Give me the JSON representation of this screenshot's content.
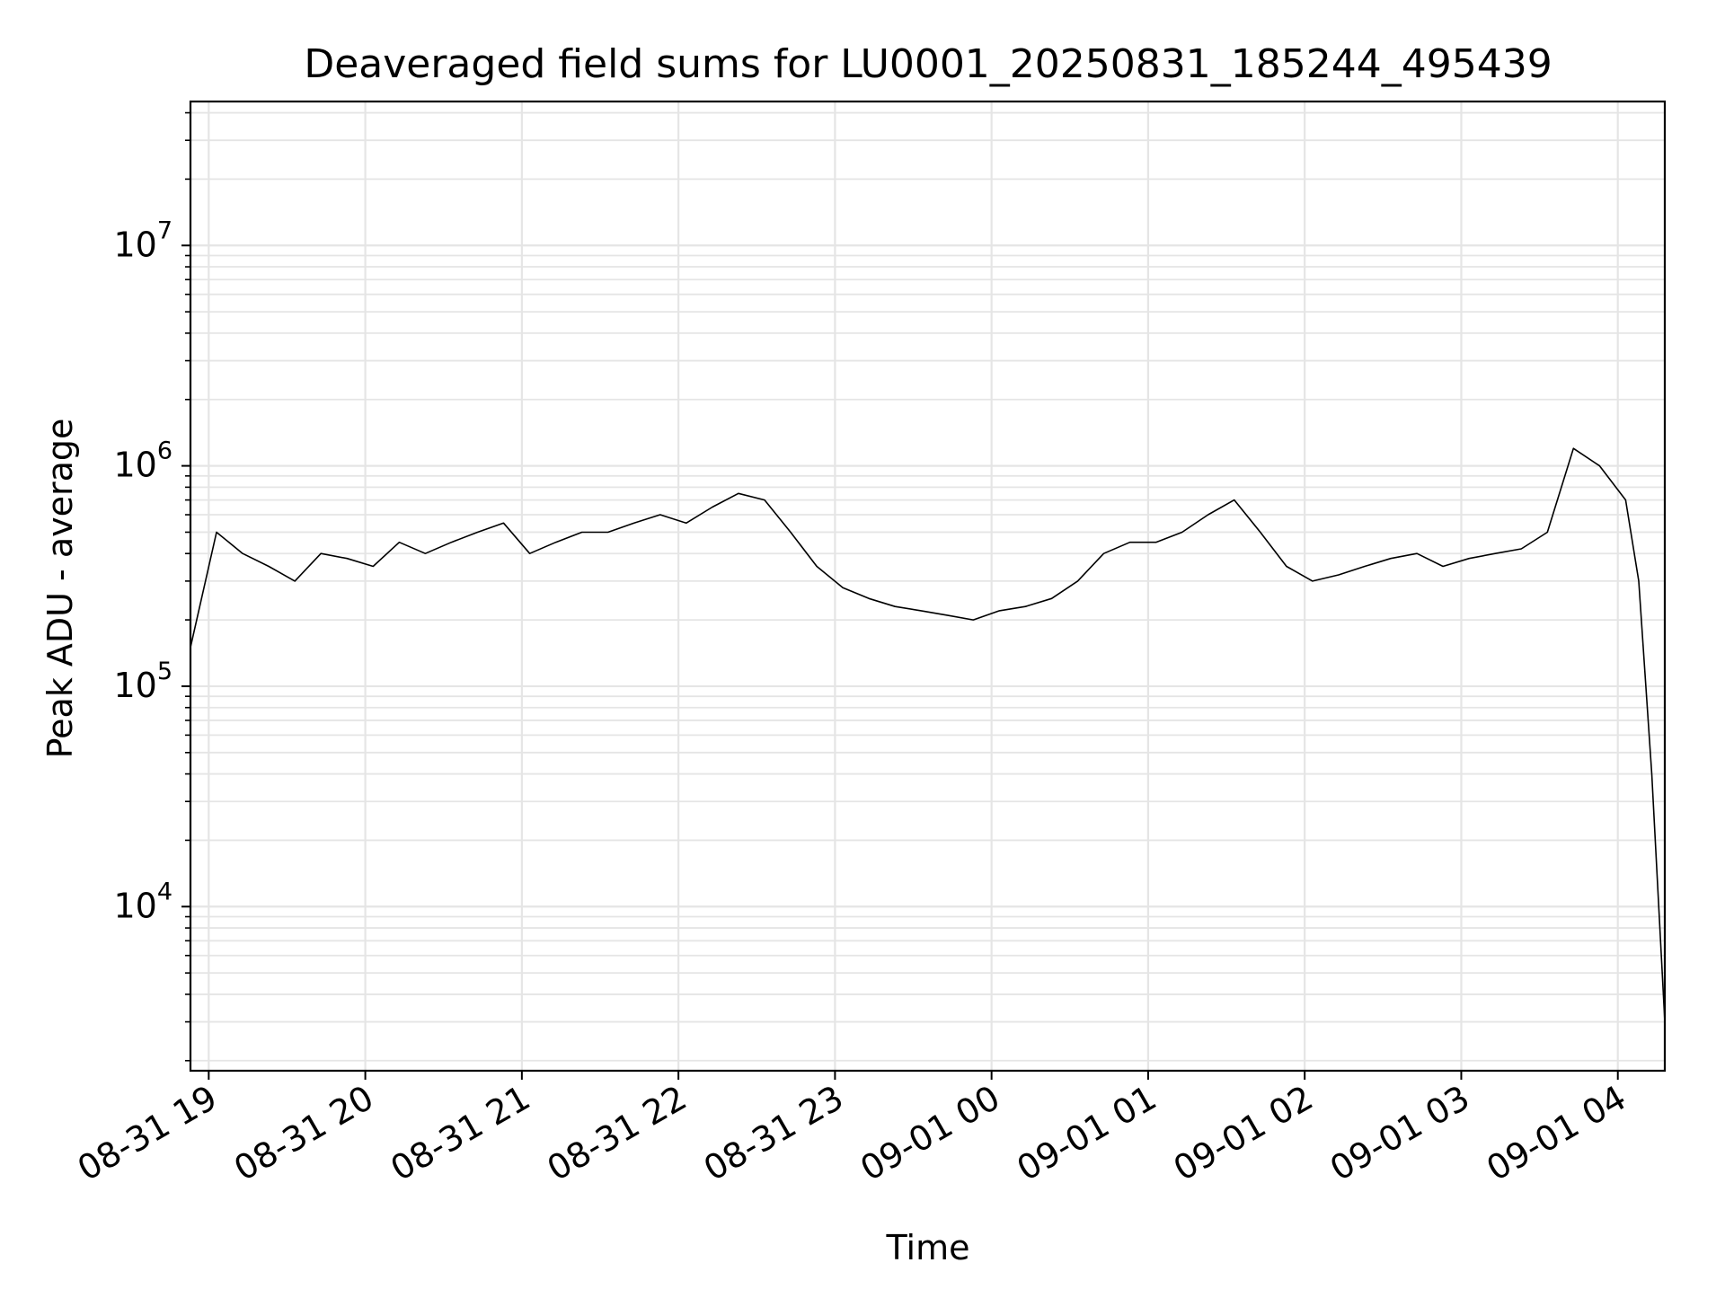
{
  "chart_data": {
    "type": "line",
    "title": "Deaveraged field sums for LU0001_20250831_185244_495439",
    "xlabel": "Time",
    "ylabel": "Peak ADU - average",
    "yscale": "log",
    "ylim": [
      1800,
      45000000
    ],
    "xlim": [
      "2025-08-31 18:53:00",
      "2025-09-01 04:18:00"
    ],
    "x_ticks": [
      {
        "value": "2025-08-31 19:00:00",
        "label": "08-31 19"
      },
      {
        "value": "2025-08-31 20:00:00",
        "label": "08-31 20"
      },
      {
        "value": "2025-08-31 21:00:00",
        "label": "08-31 21"
      },
      {
        "value": "2025-08-31 22:00:00",
        "label": "08-31 22"
      },
      {
        "value": "2025-08-31 23:00:00",
        "label": "08-31 23"
      },
      {
        "value": "2025-09-01 00:00:00",
        "label": "09-01 00"
      },
      {
        "value": "2025-09-01 01:00:00",
        "label": "09-01 01"
      },
      {
        "value": "2025-09-01 02:00:00",
        "label": "09-01 02"
      },
      {
        "value": "2025-09-01 03:00:00",
        "label": "09-01 03"
      },
      {
        "value": "2025-09-01 04:00:00",
        "label": "09-01 04"
      }
    ],
    "y_ticks": [
      {
        "value": 10000,
        "base": "10",
        "exp": "4"
      },
      {
        "value": 100000,
        "base": "10",
        "exp": "5"
      },
      {
        "value": 1000000,
        "base": "10",
        "exp": "6"
      },
      {
        "value": 10000000,
        "base": "10",
        "exp": "7"
      }
    ],
    "grid": true,
    "grid_color": "#e5e5e5",
    "line_color": "#000000",
    "series": [
      {
        "x": [
          "2025-08-31 18:53:00",
          "2025-08-31 19:03:00",
          "2025-08-31 19:13:00",
          "2025-08-31 19:23:00",
          "2025-08-31 19:33:00",
          "2025-08-31 19:43:00",
          "2025-08-31 19:53:00",
          "2025-08-31 20:03:00",
          "2025-08-31 20:13:00",
          "2025-08-31 20:23:00",
          "2025-08-31 20:33:00",
          "2025-08-31 20:43:00",
          "2025-08-31 20:53:00",
          "2025-08-31 21:03:00",
          "2025-08-31 21:13:00",
          "2025-08-31 21:23:00",
          "2025-08-31 21:33:00",
          "2025-08-31 21:43:00",
          "2025-08-31 21:53:00",
          "2025-08-31 22:03:00",
          "2025-08-31 22:13:00",
          "2025-08-31 22:23:00",
          "2025-08-31 22:33:00",
          "2025-08-31 22:43:00",
          "2025-08-31 22:53:00",
          "2025-08-31 23:03:00",
          "2025-08-31 23:13:00",
          "2025-08-31 23:23:00",
          "2025-08-31 23:33:00",
          "2025-08-31 23:43:00",
          "2025-08-31 23:53:00",
          "2025-09-01 00:03:00",
          "2025-09-01 00:13:00",
          "2025-09-01 00:23:00",
          "2025-09-01 00:33:00",
          "2025-09-01 00:43:00",
          "2025-09-01 00:53:00",
          "2025-09-01 01:03:00",
          "2025-09-01 01:13:00",
          "2025-09-01 01:23:00",
          "2025-09-01 01:33:00",
          "2025-09-01 01:43:00",
          "2025-09-01 01:53:00",
          "2025-09-01 02:03:00",
          "2025-09-01 02:13:00",
          "2025-09-01 02:23:00",
          "2025-09-01 02:33:00",
          "2025-09-01 02:43:00",
          "2025-09-01 02:53:00",
          "2025-09-01 03:03:00",
          "2025-09-01 03:13:00",
          "2025-09-01 03:23:00",
          "2025-09-01 03:33:00",
          "2025-09-01 03:43:00",
          "2025-09-01 03:53:00",
          "2025-09-01 04:03:00",
          "2025-09-01 04:08:00",
          "2025-09-01 04:13:00",
          "2025-09-01 04:18:00"
        ],
        "y": [
          150000,
          500000,
          400000,
          350000,
          300000,
          400000,
          380000,
          350000,
          450000,
          400000,
          450000,
          500000,
          550000,
          400000,
          450000,
          500000,
          500000,
          550000,
          600000,
          550000,
          650000,
          750000,
          700000,
          500000,
          350000,
          280000,
          250000,
          230000,
          220000,
          210000,
          200000,
          220000,
          230000,
          250000,
          300000,
          400000,
          450000,
          450000,
          500000,
          600000,
          700000,
          500000,
          350000,
          300000,
          320000,
          350000,
          380000,
          400000,
          350000,
          380000,
          400000,
          420000,
          500000,
          1200000,
          1000000,
          700000,
          300000,
          40000,
          3000
        ]
      }
    ]
  }
}
